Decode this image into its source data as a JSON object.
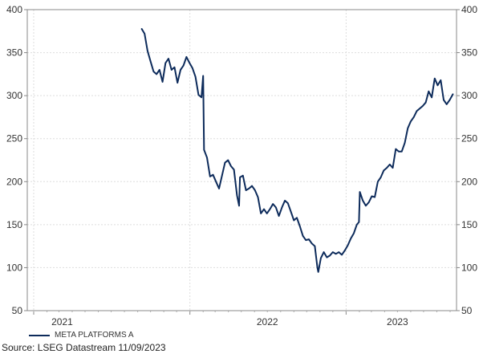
{
  "chart_data": {
    "type": "line",
    "ylim": [
      50,
      400
    ],
    "y_ticks": [
      50,
      100,
      150,
      200,
      250,
      300,
      350,
      400
    ],
    "x_labels": [
      "2021",
      "2022",
      "2023"
    ],
    "grid": true,
    "legend_position": "bottom-left",
    "series": [
      {
        "name": "META PLATFORMS A",
        "color": "#0d2b5b",
        "x": [
          "2021-09-10",
          "2021-09-17",
          "2021-09-24",
          "2021-10-01",
          "2021-10-08",
          "2021-10-15",
          "2021-10-22",
          "2021-10-29",
          "2021-11-05",
          "2021-11-12",
          "2021-11-19",
          "2021-11-26",
          "2021-12-03",
          "2021-12-10",
          "2021-12-17",
          "2021-12-24",
          "2021-12-31",
          "2022-01-07",
          "2022-01-14",
          "2022-01-21",
          "2022-01-28",
          "2022-02-01",
          "2022-02-03",
          "2022-02-10",
          "2022-02-17",
          "2022-02-24",
          "2022-03-03",
          "2022-03-10",
          "2022-03-17",
          "2022-03-24",
          "2022-03-31",
          "2022-04-07",
          "2022-04-14",
          "2022-04-21",
          "2022-04-26",
          "2022-04-28",
          "2022-05-05",
          "2022-05-12",
          "2022-05-19",
          "2022-05-26",
          "2022-06-02",
          "2022-06-09",
          "2022-06-16",
          "2022-06-23",
          "2022-06-30",
          "2022-07-07",
          "2022-07-14",
          "2022-07-21",
          "2022-07-28",
          "2022-08-04",
          "2022-08-11",
          "2022-08-18",
          "2022-08-25",
          "2022-09-01",
          "2022-09-08",
          "2022-09-15",
          "2022-09-22",
          "2022-09-29",
          "2022-10-06",
          "2022-10-13",
          "2022-10-20",
          "2022-10-26",
          "2022-10-28",
          "2022-11-03",
          "2022-11-10",
          "2022-11-17",
          "2022-11-24",
          "2022-12-01",
          "2022-12-08",
          "2022-12-15",
          "2022-12-22",
          "2022-12-29",
          "2023-01-05",
          "2023-01-12",
          "2023-01-19",
          "2023-01-26",
          "2023-01-31",
          "2023-02-02",
          "2023-02-09",
          "2023-02-16",
          "2023-02-23",
          "2023-03-02",
          "2023-03-09",
          "2023-03-16",
          "2023-03-23",
          "2023-03-30",
          "2023-04-06",
          "2023-04-13",
          "2023-04-20",
          "2023-04-27",
          "2023-05-04",
          "2023-05-11",
          "2023-05-18",
          "2023-05-25",
          "2023-06-01",
          "2023-06-08",
          "2023-06-15",
          "2023-06-22",
          "2023-06-29",
          "2023-07-06",
          "2023-07-13",
          "2023-07-20",
          "2023-07-27",
          "2023-08-03",
          "2023-08-10",
          "2023-08-17",
          "2023-08-24",
          "2023-08-31",
          "2023-09-08"
        ],
        "values": [
          378,
          372,
          352,
          340,
          328,
          325,
          330,
          316,
          338,
          343,
          330,
          333,
          315,
          330,
          335,
          345,
          338,
          332,
          322,
          301,
          298,
          323,
          237,
          228,
          206,
          208,
          200,
          192,
          207,
          222,
          225,
          218,
          214,
          184,
          172,
          205,
          207,
          190,
          192,
          195,
          190,
          182,
          163,
          168,
          163,
          168,
          174,
          170,
          160,
          170,
          178,
          175,
          165,
          155,
          158,
          148,
          137,
          132,
          133,
          128,
          125,
          100,
          95,
          111,
          118,
          112,
          114,
          118,
          116,
          118,
          115,
          120,
          126,
          134,
          140,
          150,
          153,
          188,
          178,
          172,
          176,
          183,
          182,
          200,
          205,
          213,
          216,
          220,
          216,
          238,
          235,
          235,
          245,
          262,
          270,
          275,
          282,
          285,
          288,
          292,
          305,
          298,
          320,
          312,
          318,
          295,
          290,
          295,
          302
        ]
      }
    ],
    "source": "Source: LSEG Datastream 11/09/2023"
  }
}
